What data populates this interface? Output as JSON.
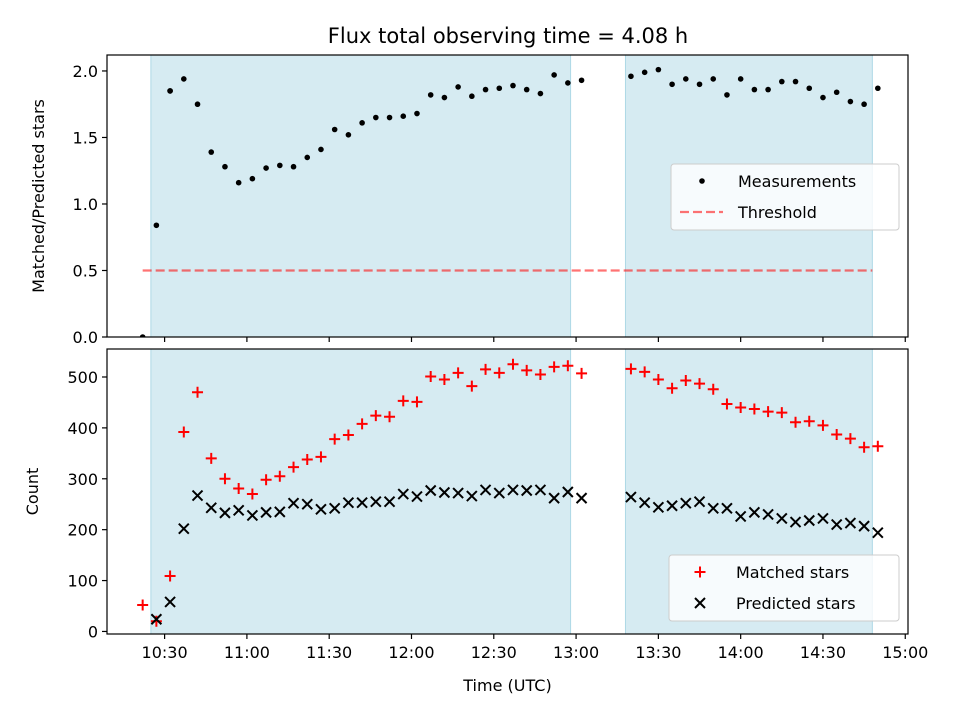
{
  "title": "Flux total observing time = 4.08 h",
  "colors": {
    "shade": "#add8e6",
    "threshold": "#ff0000",
    "matched": "#ff0000",
    "predicted": "#000000",
    "measurement": "#000000"
  },
  "chart_data": [
    {
      "type": "scatter",
      "ylabel": "Matched/Predicted stars",
      "ylim": [
        0,
        2.12
      ],
      "yticks": [
        0.0,
        0.5,
        1.0,
        1.5,
        2.0
      ],
      "ytick_labels": [
        "0.0",
        "0.5",
        "1.0",
        "1.5",
        "2.0"
      ],
      "xlim": [
        "10:09",
        "15:01"
      ],
      "shaded_intervals": [
        [
          "10:25",
          "12:58"
        ],
        [
          "13:18",
          "14:48"
        ]
      ],
      "legend": {
        "placement": "center-right",
        "entries": [
          "Measurements",
          "Threshold"
        ]
      },
      "threshold": {
        "name": "Threshold",
        "value": 0.5,
        "x_range": [
          "10:22",
          "14:48"
        ]
      },
      "series": [
        {
          "name": "Measurements",
          "marker": "dot",
          "points": [
            [
              "10:22",
              0.0
            ],
            [
              "10:27",
              0.84
            ],
            [
              "10:32",
              1.85
            ],
            [
              "10:32",
              1.85
            ],
            [
              "10:37",
              1.94
            ],
            [
              "10:42",
              1.75
            ],
            [
              "10:47",
              1.39
            ],
            [
              "10:52",
              1.28
            ],
            [
              "10:57",
              1.16
            ],
            [
              "11:02",
              1.19
            ],
            [
              "11:07",
              1.27
            ],
            [
              "11:12",
              1.29
            ],
            [
              "11:17",
              1.28
            ],
            [
              "11:22",
              1.35
            ],
            [
              "11:27",
              1.41
            ],
            [
              "11:32",
              1.56
            ],
            [
              "11:37",
              1.52
            ],
            [
              "11:42",
              1.61
            ],
            [
              "11:47",
              1.65
            ],
            [
              "11:52",
              1.65
            ],
            [
              "11:57",
              1.66
            ],
            [
              "12:02",
              1.68
            ],
            [
              "12:07",
              1.82
            ],
            [
              "12:12",
              1.8
            ],
            [
              "12:17",
              1.88
            ],
            [
              "12:22",
              1.81
            ],
            [
              "12:27",
              1.86
            ],
            [
              "12:32",
              1.87
            ],
            [
              "12:37",
              1.89
            ],
            [
              "12:42",
              1.86
            ],
            [
              "12:47",
              1.83
            ],
            [
              "12:52",
              1.97
            ],
            [
              "12:57",
              1.91
            ],
            [
              "13:02",
              1.93
            ],
            [
              "13:20",
              1.96
            ],
            [
              "13:25",
              1.99
            ],
            [
              "13:30",
              2.01
            ],
            [
              "13:35",
              1.9
            ],
            [
              "13:40",
              1.94
            ],
            [
              "13:45",
              1.9
            ],
            [
              "13:50",
              1.94
            ],
            [
              "13:55",
              1.82
            ],
            [
              "14:00",
              1.94
            ],
            [
              "14:05",
              1.86
            ],
            [
              "14:10",
              1.86
            ],
            [
              "14:15",
              1.92
            ],
            [
              "14:20",
              1.92
            ],
            [
              "14:25",
              1.87
            ],
            [
              "14:30",
              1.8
            ],
            [
              "14:35",
              1.84
            ],
            [
              "14:40",
              1.77
            ],
            [
              "14:45",
              1.75
            ],
            [
              "14:50",
              1.87
            ]
          ]
        }
      ]
    },
    {
      "type": "scatter",
      "xlabel": "Time (UTC)",
      "ylabel": "Count",
      "ylim": [
        -5,
        555
      ],
      "yticks": [
        0,
        100,
        200,
        300,
        400,
        500
      ],
      "ytick_labels": [
        "0",
        "100",
        "200",
        "300",
        "400",
        "500"
      ],
      "xlim": [
        "10:09",
        "15:01"
      ],
      "xticks": [
        "10:30",
        "11:00",
        "11:30",
        "12:00",
        "12:30",
        "13:00",
        "13:30",
        "14:00",
        "14:30",
        "15:00"
      ],
      "xtick_labels": [
        "10:30",
        "11:00",
        "11:30",
        "12:00",
        "12:30",
        "13:00",
        "13:30",
        "14:00",
        "14:30",
        "15:00"
      ],
      "shaded_intervals": [
        [
          "10:25",
          "12:58"
        ],
        [
          "13:18",
          "14:48"
        ]
      ],
      "legend": {
        "placement": "lower-right",
        "entries": [
          "Matched stars",
          "Predicted stars"
        ]
      },
      "series": [
        {
          "name": "Matched stars",
          "marker": "plus",
          "points": [
            [
              "10:22",
              52
            ],
            [
              "10:27",
              20
            ],
            [
              "10:32",
              109
            ],
            [
              "10:37",
              392
            ],
            [
              "10:42",
              470
            ],
            [
              "10:47",
              340
            ],
            [
              "10:52",
              300
            ],
            [
              "10:57",
              281
            ],
            [
              "11:02",
              270
            ],
            [
              "11:07",
              298
            ],
            [
              "11:12",
              305
            ],
            [
              "11:17",
              323
            ],
            [
              "11:22",
              338
            ],
            [
              "11:27",
              343
            ],
            [
              "11:32",
              378
            ],
            [
              "11:37",
              386
            ],
            [
              "11:42",
              408
            ],
            [
              "11:47",
              424
            ],
            [
              "11:52",
              422
            ],
            [
              "11:57",
              453
            ],
            [
              "12:02",
              451
            ],
            [
              "12:07",
              501
            ],
            [
              "12:12",
              495
            ],
            [
              "12:17",
              508
            ],
            [
              "12:22",
              482
            ],
            [
              "12:27",
              515
            ],
            [
              "12:32",
              508
            ],
            [
              "12:37",
              525
            ],
            [
              "12:42",
              513
            ],
            [
              "12:47",
              505
            ],
            [
              "12:52",
              520
            ],
            [
              "12:57",
              522
            ],
            [
              "13:02",
              507
            ],
            [
              "13:20",
              516
            ],
            [
              "13:25",
              510
            ],
            [
              "13:30",
              495
            ],
            [
              "13:35",
              478
            ],
            [
              "13:40",
              493
            ],
            [
              "13:45",
              487
            ],
            [
              "13:50",
              476
            ],
            [
              "13:55",
              447
            ],
            [
              "14:00",
              440
            ],
            [
              "14:05",
              437
            ],
            [
              "14:10",
              432
            ],
            [
              "14:15",
              430
            ],
            [
              "14:20",
              411
            ],
            [
              "14:25",
              413
            ],
            [
              "14:30",
              405
            ],
            [
              "14:35",
              387
            ],
            [
              "14:40",
              379
            ],
            [
              "14:45",
              362
            ],
            [
              "14:50",
              364
            ]
          ]
        },
        {
          "name": "Predicted stars",
          "marker": "x",
          "points": [
            [
              "10:27",
              24
            ],
            [
              "10:32",
              58
            ],
            [
              "10:37",
              202
            ],
            [
              "10:42",
              267
            ],
            [
              "10:47",
              243
            ],
            [
              "10:52",
              233
            ],
            [
              "10:57",
              238
            ],
            [
              "11:02",
              228
            ],
            [
              "11:07",
              234
            ],
            [
              "11:12",
              235
            ],
            [
              "11:17",
              252
            ],
            [
              "11:22",
              250
            ],
            [
              "11:27",
              240
            ],
            [
              "11:32",
              242
            ],
            [
              "11:37",
              253
            ],
            [
              "11:42",
              253
            ],
            [
              "11:47",
              255
            ],
            [
              "11:52",
              255
            ],
            [
              "11:57",
              270
            ],
            [
              "12:02",
              265
            ],
            [
              "12:07",
              277
            ],
            [
              "12:12",
              273
            ],
            [
              "12:17",
              272
            ],
            [
              "12:22",
              266
            ],
            [
              "12:27",
              278
            ],
            [
              "12:32",
              272
            ],
            [
              "12:37",
              278
            ],
            [
              "12:42",
              277
            ],
            [
              "12:47",
              278
            ],
            [
              "12:52",
              262
            ],
            [
              "12:57",
              274
            ],
            [
              "13:02",
              262
            ],
            [
              "13:20",
              264
            ],
            [
              "13:25",
              253
            ],
            [
              "13:30",
              244
            ],
            [
              "13:35",
              247
            ],
            [
              "13:40",
              252
            ],
            [
              "13:45",
              255
            ],
            [
              "13:50",
              242
            ],
            [
              "13:55",
              242
            ],
            [
              "14:00",
              226
            ],
            [
              "14:05",
              234
            ],
            [
              "14:10",
              230
            ],
            [
              "14:15",
              222
            ],
            [
              "14:20",
              215
            ],
            [
              "14:25",
              218
            ],
            [
              "14:30",
              222
            ],
            [
              "14:35",
              210
            ],
            [
              "14:40",
              213
            ],
            [
              "14:45",
              207
            ],
            [
              "14:50",
              194
            ]
          ]
        }
      ]
    }
  ]
}
